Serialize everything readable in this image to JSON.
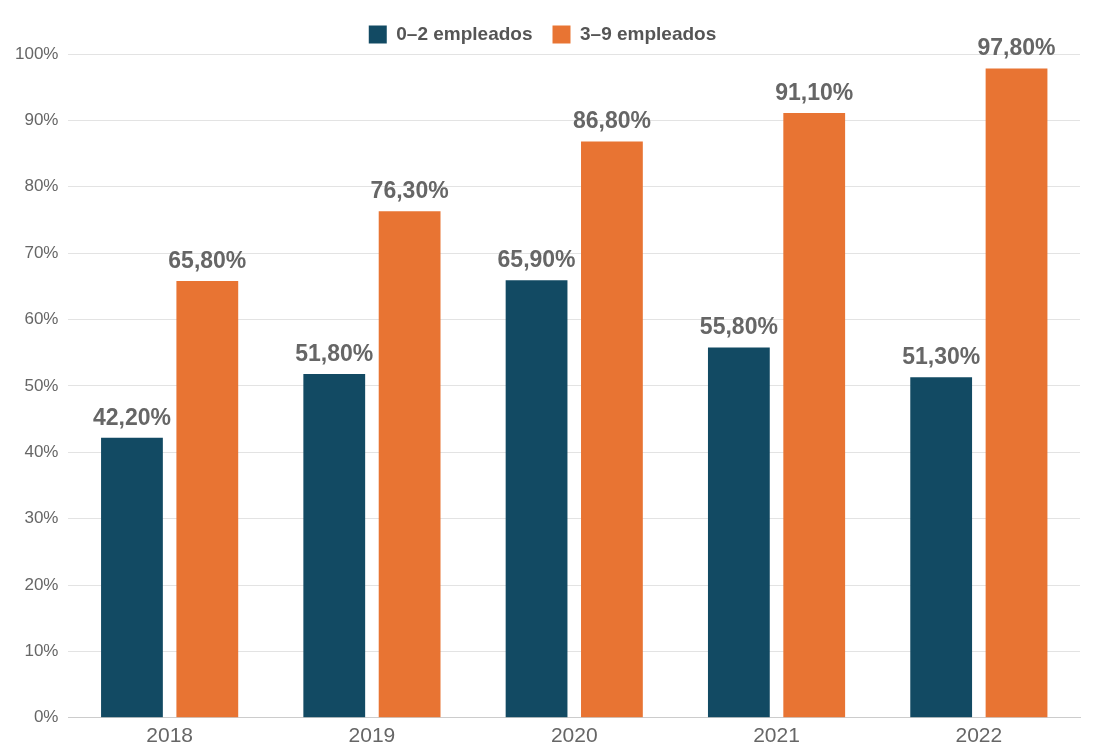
{
  "chart_data": {
    "type": "bar",
    "categories": [
      "2018",
      "2019",
      "2020",
      "2021",
      "2022"
    ],
    "series": [
      {
        "name": "0–2 empleados",
        "color": "#124a63",
        "values": [
          42.2,
          51.8,
          65.9,
          55.8,
          51.3
        ],
        "value_labels": [
          "42,20%",
          "51,80%",
          "65,90%",
          "55,80%",
          "51,30%"
        ]
      },
      {
        "name": "3–9 empleados",
        "color": "#e87433",
        "values": [
          65.8,
          76.3,
          86.8,
          91.1,
          97.8
        ],
        "value_labels": [
          "65,80%",
          "76,30%",
          "86,80%",
          "91,10%",
          "97,80%"
        ]
      }
    ],
    "ylim": [
      0,
      100
    ],
    "yticks": [
      {
        "value": 0,
        "label": "0%"
      },
      {
        "value": 10,
        "label": "10%"
      },
      {
        "value": 20,
        "label": "20%"
      },
      {
        "value": 30,
        "label": "30%"
      },
      {
        "value": 40,
        "label": "40%"
      },
      {
        "value": 50,
        "label": "50%"
      },
      {
        "value": 60,
        "label": "60%"
      },
      {
        "value": 70,
        "label": "70%"
      },
      {
        "value": 80,
        "label": "80%"
      },
      {
        "value": 90,
        "label": "90%"
      },
      {
        "value": 100,
        "label": "100%"
      }
    ],
    "grid": "y",
    "legend": "top"
  }
}
